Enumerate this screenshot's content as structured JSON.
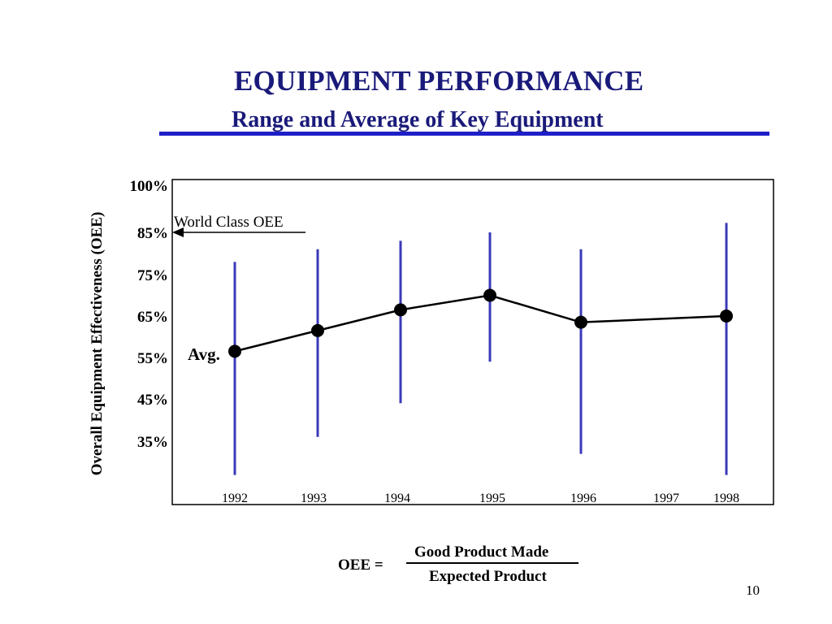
{
  "slide": {
    "title": "EQUIPMENT PERFORMANCE",
    "subtitle": "Range and Average of Key Equipment",
    "page_number": "10"
  },
  "formula": {
    "lhs": "OEE =",
    "numerator": "Good Product Made",
    "denominator": "Expected Product"
  },
  "colors": {
    "title": "#1a1a7a",
    "rule": "#1f1fc8",
    "range_bar": "#3a3ab8",
    "average_line": "#000000"
  },
  "chart_data": {
    "type": "line",
    "ylabel": "Overall Equipment Effectiveness (OEE)",
    "xlabel": "",
    "y_ticks": [
      {
        "value": 100,
        "label": "100%"
      },
      {
        "value": 85,
        "label": "85%"
      },
      {
        "value": 75,
        "label": "75%"
      },
      {
        "value": 65,
        "label": "65%"
      },
      {
        "value": 55,
        "label": "55%"
      },
      {
        "value": 45,
        "label": "45%"
      },
      {
        "value": 35,
        "label": "35%"
      }
    ],
    "x_ticks": [
      "1992",
      "1993",
      "1994",
      "1995",
      "1996",
      "1997",
      "1998"
    ],
    "series": [
      {
        "name": "Avg.",
        "x": [
          "1992",
          "1993",
          "1994",
          "1995",
          "1996",
          "1998"
        ],
        "values": [
          56.5,
          61.5,
          66.5,
          70,
          63.5,
          65
        ]
      }
    ],
    "ranges": [
      {
        "x": "1992",
        "low": 27,
        "high": 78
      },
      {
        "x": "1993",
        "low": 36,
        "high": 81
      },
      {
        "x": "1994",
        "low": 44,
        "high": 83
      },
      {
        "x": "1995",
        "low": 54,
        "high": 85
      },
      {
        "x": "1996",
        "low": 32,
        "high": 81
      },
      {
        "x": "1998",
        "low": 27,
        "high": 88
      }
    ],
    "annotations": [
      {
        "text": "World Class OEE",
        "y": 85,
        "arrow": "left"
      },
      {
        "text": "Avg.",
        "series": "Avg."
      }
    ],
    "grid": false,
    "legend": "none"
  }
}
